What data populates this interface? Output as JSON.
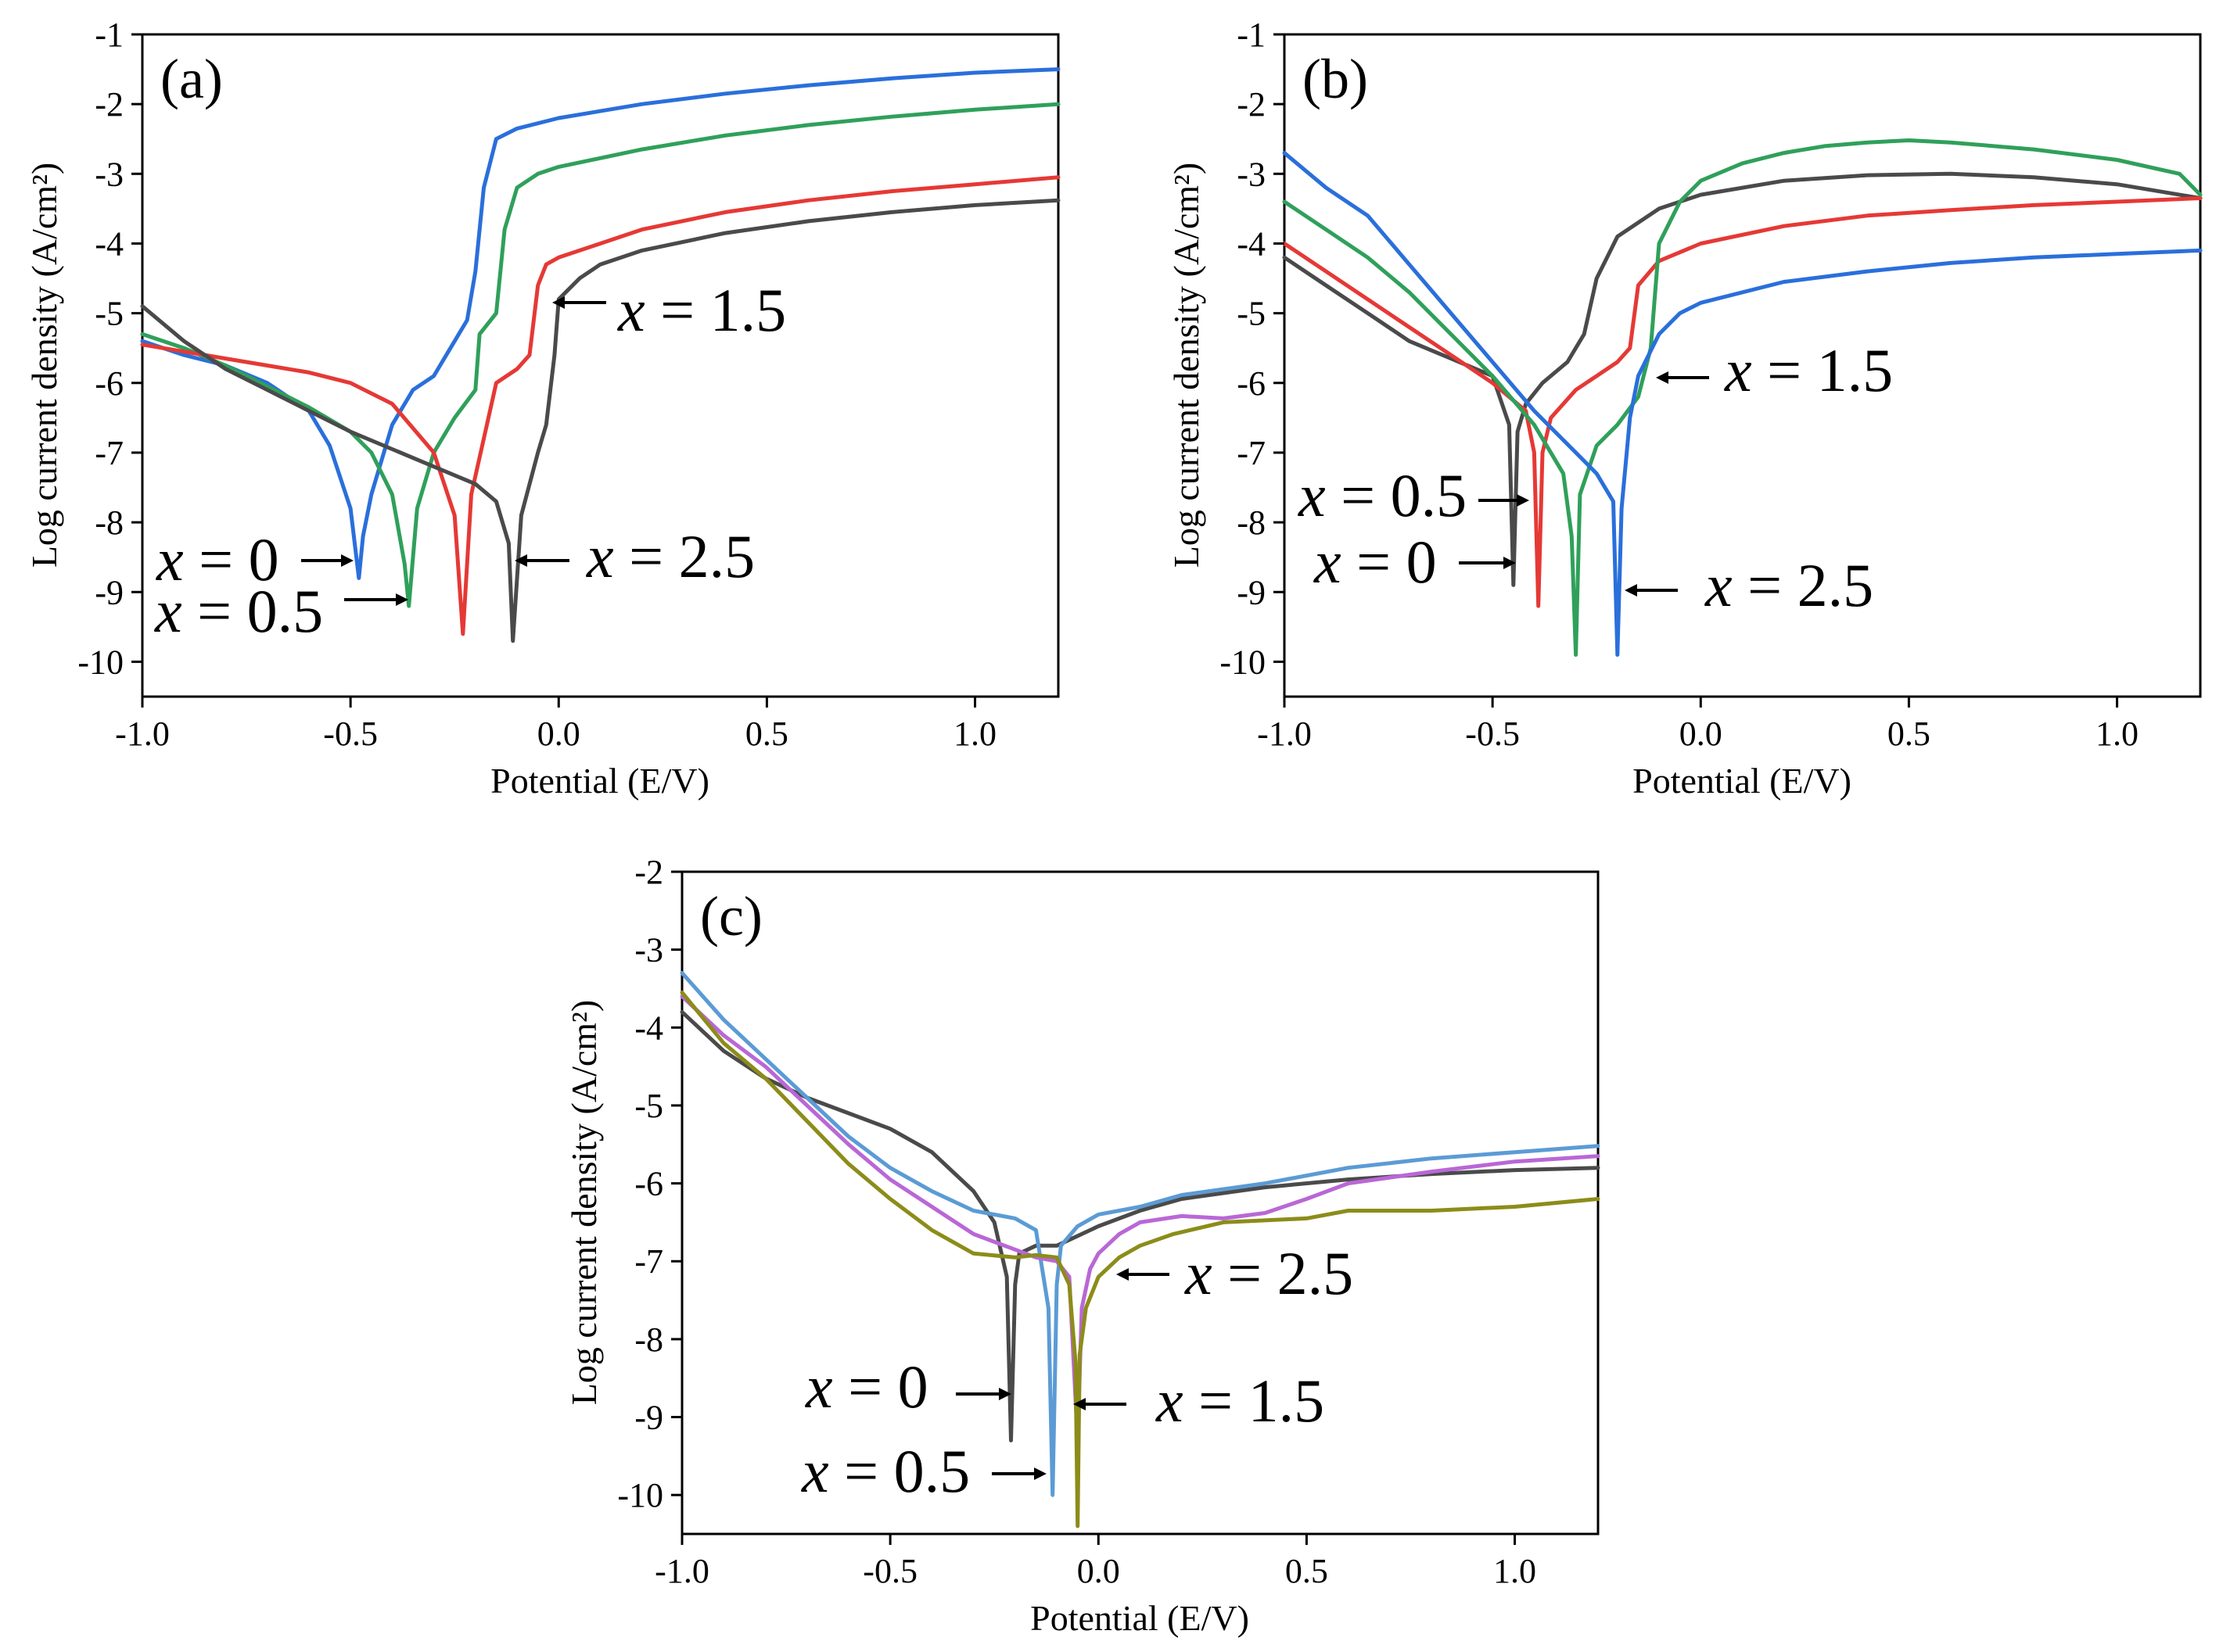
{
  "chart_data": [
    {
      "type": "line",
      "panel_label": "(a)",
      "xlabel": "Potential (E/V)",
      "ylabel": "Log current density (A/cm²)",
      "xlim": [
        -1.0,
        1.2
      ],
      "ylim": [
        -10.5,
        -1
      ],
      "xticks": [
        -1.0,
        -0.5,
        0.0,
        0.5,
        1.0
      ],
      "xticklabels": [
        "-1.0",
        "-0.5",
        "0.0",
        "0.5",
        "1.0"
      ],
      "yticks": [
        -1,
        -2,
        -3,
        -4,
        -5,
        -6,
        -7,
        -8,
        -9,
        -10
      ],
      "yticklabels": [
        "-1",
        "-2",
        "-3",
        "-4",
        "-5",
        "-6",
        "-7",
        "-8",
        "-9",
        "-10"
      ],
      "series": [
        {
          "name": "x = 0",
          "color": "#2a6fdb",
          "x": [
            -1.0,
            -0.9,
            -0.8,
            -0.7,
            -0.6,
            -0.55,
            -0.5,
            -0.48,
            -0.47,
            -0.45,
            -0.4,
            -0.35,
            -0.3,
            -0.25,
            -0.22,
            -0.2,
            -0.18,
            -0.15,
            -0.1,
            0.0,
            0.2,
            0.4,
            0.6,
            0.8,
            1.0,
            1.2
          ],
          "y": [
            -5.4,
            -5.6,
            -5.75,
            -6.0,
            -6.4,
            -6.9,
            -7.8,
            -8.8,
            -8.2,
            -7.6,
            -6.6,
            -6.1,
            -5.9,
            -5.4,
            -5.1,
            -4.4,
            -3.2,
            -2.5,
            -2.35,
            -2.2,
            -2.0,
            -1.85,
            -1.73,
            -1.63,
            -1.55,
            -1.5
          ]
        },
        {
          "name": "x = 0.5",
          "color": "#2fa05a",
          "x": [
            -1.0,
            -0.9,
            -0.8,
            -0.7,
            -0.6,
            -0.5,
            -0.45,
            -0.4,
            -0.37,
            -0.36,
            -0.34,
            -0.3,
            -0.25,
            -0.2,
            -0.19,
            -0.15,
            -0.13,
            -0.1,
            -0.05,
            0.0,
            0.2,
            0.4,
            0.6,
            0.8,
            1.0,
            1.2
          ],
          "y": [
            -5.3,
            -5.5,
            -5.75,
            -6.05,
            -6.35,
            -6.7,
            -7.0,
            -7.6,
            -8.6,
            -9.2,
            -7.8,
            -7.0,
            -6.5,
            -6.1,
            -5.3,
            -5.0,
            -3.8,
            -3.2,
            -3.0,
            -2.9,
            -2.65,
            -2.45,
            -2.3,
            -2.18,
            -2.08,
            -2.0
          ]
        },
        {
          "name": "x = 1.5",
          "color": "#e53935",
          "x": [
            -1.0,
            -0.9,
            -0.8,
            -0.7,
            -0.6,
            -0.5,
            -0.4,
            -0.3,
            -0.25,
            -0.23,
            -0.21,
            -0.18,
            -0.15,
            -0.1,
            -0.07,
            -0.05,
            -0.03,
            0.0,
            0.1,
            0.2,
            0.4,
            0.6,
            0.8,
            1.0,
            1.2
          ],
          "y": [
            -5.45,
            -5.55,
            -5.65,
            -5.75,
            -5.85,
            -6.0,
            -6.3,
            -7.0,
            -7.9,
            -9.6,
            -7.6,
            -6.8,
            -6.0,
            -5.8,
            -5.6,
            -4.6,
            -4.3,
            -4.2,
            -4.0,
            -3.8,
            -3.55,
            -3.38,
            -3.25,
            -3.15,
            -3.05
          ]
        },
        {
          "name": "x = 2.5",
          "color": "#4a4a4a",
          "x": [
            -1.0,
            -0.9,
            -0.8,
            -0.7,
            -0.6,
            -0.5,
            -0.4,
            -0.3,
            -0.2,
            -0.15,
            -0.12,
            -0.11,
            -0.09,
            -0.05,
            -0.03,
            -0.01,
            0.0,
            0.05,
            0.1,
            0.2,
            0.4,
            0.6,
            0.8,
            1.0,
            1.2
          ],
          "y": [
            -4.9,
            -5.4,
            -5.8,
            -6.1,
            -6.4,
            -6.7,
            -6.95,
            -7.2,
            -7.45,
            -7.7,
            -8.3,
            -9.7,
            -7.9,
            -7.0,
            -6.6,
            -5.6,
            -4.8,
            -4.5,
            -4.3,
            -4.1,
            -3.85,
            -3.68,
            -3.55,
            -3.45,
            -3.38
          ]
        }
      ],
      "annotations": [
        {
          "prefix": "x",
          "suffix": " = 0"
        },
        {
          "prefix": "x",
          "suffix": " = 0.5"
        },
        {
          "prefix": "x",
          "suffix": " = 1.5"
        },
        {
          "prefix": "x",
          "suffix": " = 2.5"
        }
      ]
    },
    {
      "type": "line",
      "panel_label": "(b)",
      "xlabel": "Potential (E/V)",
      "ylabel": "Log current density (A/cm²)",
      "xlim": [
        -1.0,
        1.2
      ],
      "ylim": [
        -10.5,
        -1
      ],
      "xticks": [
        -1.0,
        -0.5,
        0.0,
        0.5,
        1.0
      ],
      "xticklabels": [
        "-1.0",
        "-0.5",
        "0.0",
        "0.5",
        "1.0"
      ],
      "yticks": [
        -1,
        -2,
        -3,
        -4,
        -5,
        -6,
        -7,
        -8,
        -9,
        -10
      ],
      "yticklabels": [
        "-1",
        "-2",
        "-3",
        "-4",
        "-5",
        "-6",
        "-7",
        "-8",
        "-9",
        "-10"
      ],
      "series": [
        {
          "name": "x = 0",
          "color": "#4a4a4a",
          "x": [
            -1.0,
            -0.9,
            -0.8,
            -0.7,
            -0.6,
            -0.5,
            -0.46,
            -0.45,
            -0.44,
            -0.42,
            -0.38,
            -0.32,
            -0.28,
            -0.25,
            -0.2,
            -0.1,
            0.0,
            0.2,
            0.4,
            0.6,
            0.8,
            1.0,
            1.2
          ],
          "y": [
            -4.2,
            -4.6,
            -5.0,
            -5.4,
            -5.65,
            -5.9,
            -6.6,
            -8.9,
            -6.7,
            -6.3,
            -6.0,
            -5.7,
            -5.3,
            -4.5,
            -3.9,
            -3.5,
            -3.3,
            -3.1,
            -3.02,
            -3.0,
            -3.05,
            -3.15,
            -3.35
          ]
        },
        {
          "name": "x = 0.5",
          "color": "#e53935",
          "x": [
            -1.0,
            -0.9,
            -0.8,
            -0.7,
            -0.6,
            -0.5,
            -0.42,
            -0.4,
            -0.39,
            -0.38,
            -0.36,
            -0.3,
            -0.25,
            -0.2,
            -0.17,
            -0.15,
            -0.1,
            0.0,
            0.2,
            0.4,
            0.6,
            0.8,
            1.0,
            1.2
          ],
          "y": [
            -4.0,
            -4.4,
            -4.8,
            -5.2,
            -5.6,
            -6.0,
            -6.4,
            -7.0,
            -9.2,
            -7.0,
            -6.5,
            -6.1,
            -5.9,
            -5.7,
            -5.5,
            -4.6,
            -4.25,
            -4.0,
            -3.75,
            -3.6,
            -3.52,
            -3.45,
            -3.4,
            -3.35
          ]
        },
        {
          "name": "x = 1.5",
          "color": "#2fa05a",
          "x": [
            -1.0,
            -0.9,
            -0.8,
            -0.7,
            -0.6,
            -0.5,
            -0.4,
            -0.33,
            -0.31,
            -0.3,
            -0.29,
            -0.25,
            -0.2,
            -0.15,
            -0.12,
            -0.1,
            -0.05,
            0.0,
            0.1,
            0.2,
            0.3,
            0.4,
            0.5,
            0.6,
            0.8,
            1.0,
            1.15,
            1.2
          ],
          "y": [
            -3.4,
            -3.8,
            -4.2,
            -4.7,
            -5.3,
            -5.9,
            -6.6,
            -7.3,
            -8.2,
            -9.9,
            -7.6,
            -6.9,
            -6.6,
            -6.2,
            -5.5,
            -4.0,
            -3.4,
            -3.1,
            -2.85,
            -2.7,
            -2.6,
            -2.55,
            -2.52,
            -2.55,
            -2.65,
            -2.8,
            -3.0,
            -3.3
          ]
        },
        {
          "name": "x = 2.5",
          "color": "#2a6fdb",
          "x": [
            -1.0,
            -0.9,
            -0.8,
            -0.7,
            -0.6,
            -0.5,
            -0.4,
            -0.3,
            -0.25,
            -0.21,
            -0.2,
            -0.19,
            -0.17,
            -0.15,
            -0.1,
            -0.05,
            0.0,
            0.2,
            0.4,
            0.6,
            0.8,
            1.0,
            1.2
          ],
          "y": [
            -2.7,
            -3.2,
            -3.6,
            -4.3,
            -5.0,
            -5.7,
            -6.4,
            -7.0,
            -7.3,
            -7.7,
            -9.9,
            -7.8,
            -6.5,
            -5.9,
            -5.3,
            -5.0,
            -4.85,
            -4.55,
            -4.4,
            -4.28,
            -4.2,
            -4.15,
            -4.1
          ]
        }
      ],
      "annotations": [
        {
          "prefix": "x",
          "suffix": " = 0.5"
        },
        {
          "prefix": "x",
          "suffix": " = 0"
        },
        {
          "prefix": "x",
          "suffix": " = 1.5"
        },
        {
          "prefix": "x",
          "suffix": " = 2.5"
        }
      ]
    },
    {
      "type": "line",
      "panel_label": "(c)",
      "xlabel": "Potential (E/V)",
      "ylabel": "Log current density (A/cm²)",
      "xlim": [
        -1.0,
        1.2
      ],
      "ylim": [
        -10.5,
        -2
      ],
      "xticks": [
        -1.0,
        -0.5,
        0.0,
        0.5,
        1.0
      ],
      "xticklabels": [
        "-1.0",
        "-0.5",
        "0.0",
        "0.5",
        "1.0"
      ],
      "yticks": [
        -2,
        -3,
        -4,
        -5,
        -6,
        -7,
        -8,
        -9,
        -10
      ],
      "yticklabels": [
        "-2",
        "-3",
        "-4",
        "-5",
        "-6",
        "-7",
        "-8",
        "-9",
        "-10"
      ],
      "series": [
        {
          "name": "x = 0",
          "color": "#4a4a4a",
          "x": [
            -1.0,
            -0.9,
            -0.8,
            -0.7,
            -0.6,
            -0.5,
            -0.4,
            -0.3,
            -0.25,
            -0.22,
            -0.21,
            -0.2,
            -0.19,
            -0.15,
            -0.1,
            0.0,
            0.1,
            0.2,
            0.4,
            0.6,
            0.8,
            1.0,
            1.2
          ],
          "y": [
            -3.8,
            -4.3,
            -4.65,
            -4.9,
            -5.1,
            -5.3,
            -5.6,
            -6.1,
            -6.5,
            -7.2,
            -9.3,
            -7.3,
            -6.9,
            -6.8,
            -6.8,
            -6.55,
            -6.35,
            -6.2,
            -6.05,
            -5.95,
            -5.88,
            -5.83,
            -5.8
          ]
        },
        {
          "name": "x = 0.5",
          "color": "#5b9bd5",
          "x": [
            -1.0,
            -0.9,
            -0.8,
            -0.7,
            -0.6,
            -0.5,
            -0.4,
            -0.3,
            -0.2,
            -0.15,
            -0.12,
            -0.11,
            -0.1,
            -0.09,
            -0.05,
            0.0,
            0.1,
            0.2,
            0.4,
            0.6,
            0.8,
            1.0,
            1.2
          ],
          "y": [
            -3.3,
            -3.9,
            -4.4,
            -4.9,
            -5.4,
            -5.8,
            -6.1,
            -6.35,
            -6.45,
            -6.6,
            -7.6,
            -10.0,
            -7.3,
            -6.8,
            -6.55,
            -6.4,
            -6.3,
            -6.15,
            -6.0,
            -5.8,
            -5.68,
            -5.6,
            -5.52
          ]
        },
        {
          "name": "x = 1.5",
          "color": "#b967d6",
          "x": [
            -1.0,
            -0.9,
            -0.8,
            -0.7,
            -0.6,
            -0.5,
            -0.4,
            -0.3,
            -0.2,
            -0.15,
            -0.1,
            -0.07,
            -0.05,
            -0.04,
            -0.02,
            0.0,
            0.05,
            0.1,
            0.2,
            0.3,
            0.4,
            0.5,
            0.6,
            0.8,
            1.0,
            1.2
          ],
          "y": [
            -3.6,
            -4.1,
            -4.5,
            -5.0,
            -5.5,
            -5.95,
            -6.3,
            -6.65,
            -6.85,
            -6.95,
            -7.0,
            -7.2,
            -9.3,
            -7.6,
            -7.1,
            -6.9,
            -6.65,
            -6.5,
            -6.42,
            -6.45,
            -6.38,
            -6.2,
            -6.0,
            -5.85,
            -5.72,
            -5.65
          ]
        },
        {
          "name": "x = 2.5",
          "color": "#8c8c1a",
          "x": [
            -1.0,
            -0.9,
            -0.8,
            -0.7,
            -0.6,
            -0.5,
            -0.4,
            -0.3,
            -0.2,
            -0.15,
            -0.1,
            -0.07,
            -0.055,
            -0.05,
            -0.045,
            -0.03,
            0.0,
            0.05,
            0.1,
            0.18,
            0.3,
            0.5,
            0.6,
            0.8,
            1.0,
            1.2
          ],
          "y": [
            -3.55,
            -4.2,
            -4.65,
            -5.2,
            -5.75,
            -6.2,
            -6.6,
            -6.9,
            -6.95,
            -6.92,
            -6.95,
            -7.3,
            -8.3,
            -10.4,
            -8.2,
            -7.6,
            -7.2,
            -6.95,
            -6.8,
            -6.65,
            -6.5,
            -6.45,
            -6.35,
            -6.35,
            -6.3,
            -6.2
          ]
        }
      ],
      "annotations": [
        {
          "prefix": "x",
          "suffix": " = 0"
        },
        {
          "prefix": "x",
          "suffix": " = 0.5"
        },
        {
          "prefix": "x",
          "suffix": " = 1.5"
        },
        {
          "prefix": "x",
          "suffix": " = 2.5"
        }
      ]
    }
  ]
}
